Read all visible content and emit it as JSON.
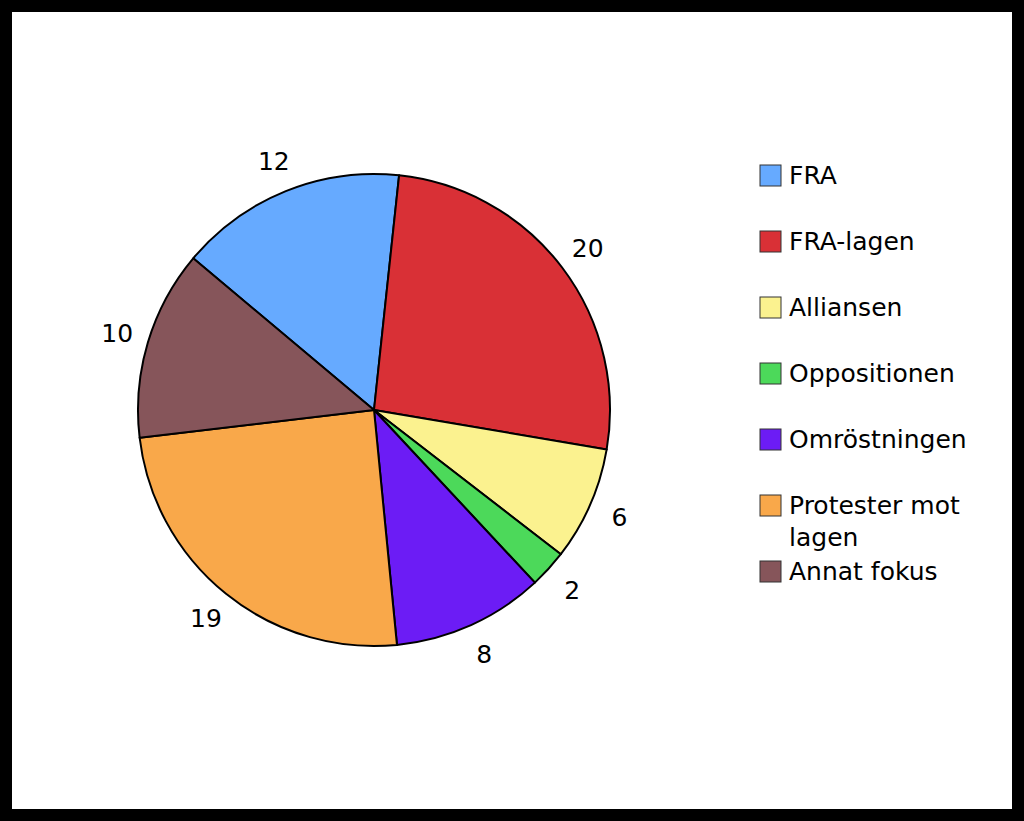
{
  "chart_data": {
    "type": "pie",
    "categories": [
      "FRA",
      "FRA-lagen",
      "Alliansen",
      "Oppositionen",
      "Omröstningen",
      "Protester mot lagen",
      "Annat fokus"
    ],
    "values": [
      12,
      20,
      6,
      2,
      8,
      19,
      10
    ],
    "colors": [
      "#66aaff",
      "#d93036",
      "#fbf28f",
      "#4cd95a",
      "#6c1cf5",
      "#f9a84a",
      "#86555a"
    ],
    "data_labels": true,
    "legend": "right"
  }
}
